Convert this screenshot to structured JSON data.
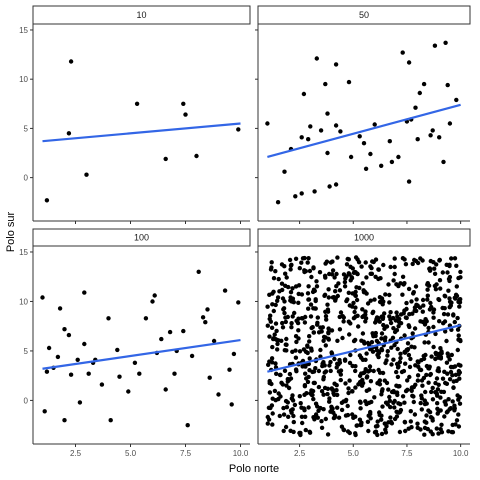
{
  "chart_data": {
    "type": "scatter",
    "xlabel": "Polo norte",
    "ylabel": "Polo sur",
    "xlim": [
      0.75,
      10.25
    ],
    "ylim": [
      -4,
      15.2
    ],
    "x_ticks": [
      2.5,
      5.0,
      7.5,
      10.0
    ],
    "x_tick_labels": [
      "2.5",
      "5.0",
      "7.5",
      "10.0"
    ],
    "y_ticks": [
      0,
      5,
      10,
      15
    ],
    "y_tick_labels": [
      "0",
      "5",
      "10",
      "15"
    ],
    "grid": false,
    "point_color": "#000000",
    "line_color": "#3366e6",
    "strip_fill": "#ffffff",
    "panels": [
      {
        "label": "10",
        "fit": {
          "x": [
            1.0,
            10.0
          ],
          "y": [
            3.7,
            5.5
          ]
        },
        "points": [
          [
            1.2,
            -2.3
          ],
          [
            2.3,
            11.8
          ],
          [
            2.2,
            4.5
          ],
          [
            3.0,
            0.3
          ],
          [
            5.3,
            7.5
          ],
          [
            6.6,
            1.9
          ],
          [
            7.4,
            7.5
          ],
          [
            7.5,
            6.4
          ],
          [
            8.0,
            2.2
          ],
          [
            9.9,
            4.9
          ]
        ]
      },
      {
        "label": "50",
        "fit": {
          "x": [
            1.0,
            10.0
          ],
          "y": [
            2.1,
            7.4
          ]
        },
        "points": [
          [
            1.0,
            5.5
          ],
          [
            1.5,
            -2.5
          ],
          [
            1.8,
            0.6
          ],
          [
            2.1,
            2.9
          ],
          [
            2.3,
            -1.9
          ],
          [
            2.6,
            4.1
          ],
          [
            2.6,
            -1.6
          ],
          [
            2.7,
            8.5
          ],
          [
            2.9,
            3.9
          ],
          [
            3.0,
            5.2
          ],
          [
            3.2,
            -1.4
          ],
          [
            3.3,
            12.1
          ],
          [
            3.5,
            4.8
          ],
          [
            3.7,
            9.5
          ],
          [
            3.8,
            2.5
          ],
          [
            3.8,
            6.5
          ],
          [
            3.9,
            -0.9
          ],
          [
            4.2,
            -0.7
          ],
          [
            4.2,
            5.3
          ],
          [
            4.2,
            11.5
          ],
          [
            4.4,
            4.7
          ],
          [
            4.8,
            9.7
          ],
          [
            4.9,
            2.1
          ],
          [
            5.3,
            4.2
          ],
          [
            5.5,
            3.5
          ],
          [
            5.6,
            0.9
          ],
          [
            5.8,
            2.4
          ],
          [
            6.0,
            5.4
          ],
          [
            6.3,
            1.2
          ],
          [
            6.7,
            3.7
          ],
          [
            6.8,
            1.6
          ],
          [
            7.1,
            2.1
          ],
          [
            7.3,
            12.7
          ],
          [
            7.5,
            5.7
          ],
          [
            7.6,
            -0.4
          ],
          [
            7.6,
            11.7
          ],
          [
            7.7,
            5.9
          ],
          [
            7.9,
            7.1
          ],
          [
            8.0,
            3.9
          ],
          [
            8.1,
            8.6
          ],
          [
            8.3,
            9.5
          ],
          [
            8.6,
            4.3
          ],
          [
            8.7,
            4.8
          ],
          [
            8.8,
            13.4
          ],
          [
            9.0,
            4.1
          ],
          [
            9.2,
            1.6
          ],
          [
            9.3,
            13.7
          ],
          [
            9.4,
            9.4
          ],
          [
            9.5,
            5.5
          ],
          [
            9.8,
            7.9
          ]
        ]
      },
      {
        "label": "100",
        "fit": {
          "x": [
            1.0,
            10.0
          ],
          "y": [
            3.2,
            6.1
          ]
        },
        "points": [
          [
            1.0,
            10.4
          ],
          [
            1.1,
            -1.1
          ],
          [
            1.2,
            2.9
          ],
          [
            1.5,
            3.3
          ],
          [
            1.7,
            4.4
          ],
          [
            1.8,
            9.3
          ],
          [
            2.0,
            -2.0
          ],
          [
            2.0,
            7.2
          ],
          [
            2.3,
            2.6
          ],
          [
            2.6,
            4.1
          ],
          [
            2.7,
            -0.2
          ],
          [
            2.9,
            10.9
          ],
          [
            2.9,
            5.7
          ],
          [
            3.1,
            2.7
          ],
          [
            3.3,
            3.8
          ],
          [
            3.7,
            1.6
          ],
          [
            4.1,
            -2.0
          ],
          [
            4.4,
            5.1
          ],
          [
            4.5,
            2.4
          ],
          [
            4.9,
            0.9
          ],
          [
            5.4,
            2.7
          ],
          [
            5.7,
            8.3
          ],
          [
            6.0,
            10.0
          ],
          [
            6.2,
            4.8
          ],
          [
            6.4,
            6.2
          ],
          [
            6.6,
            1.1
          ],
          [
            6.8,
            6.9
          ],
          [
            7.1,
            5.0
          ],
          [
            7.4,
            7.0
          ],
          [
            7.6,
            -2.5
          ],
          [
            7.8,
            4.5
          ],
          [
            8.1,
            13.0
          ],
          [
            8.3,
            8.4
          ],
          [
            8.5,
            9.2
          ],
          [
            8.6,
            2.3
          ],
          [
            8.8,
            6.0
          ],
          [
            9.0,
            0.6
          ],
          [
            9.3,
            11.1
          ],
          [
            9.5,
            3.1
          ],
          [
            9.7,
            4.7
          ],
          [
            9.9,
            9.9
          ],
          [
            1.3,
            5.3
          ],
          [
            2.2,
            6.6
          ],
          [
            3.4,
            4.1
          ],
          [
            4.0,
            8.3
          ],
          [
            5.2,
            3.8
          ],
          [
            6.1,
            10.6
          ],
          [
            7.0,
            2.7
          ],
          [
            8.4,
            7.9
          ],
          [
            9.6,
            -0.4
          ]
        ]
      },
      {
        "label": "1000",
        "fit": {
          "x": [
            1.0,
            10.0
          ],
          "y": [
            2.9,
            7.6
          ]
        },
        "points": []
      }
    ]
  }
}
